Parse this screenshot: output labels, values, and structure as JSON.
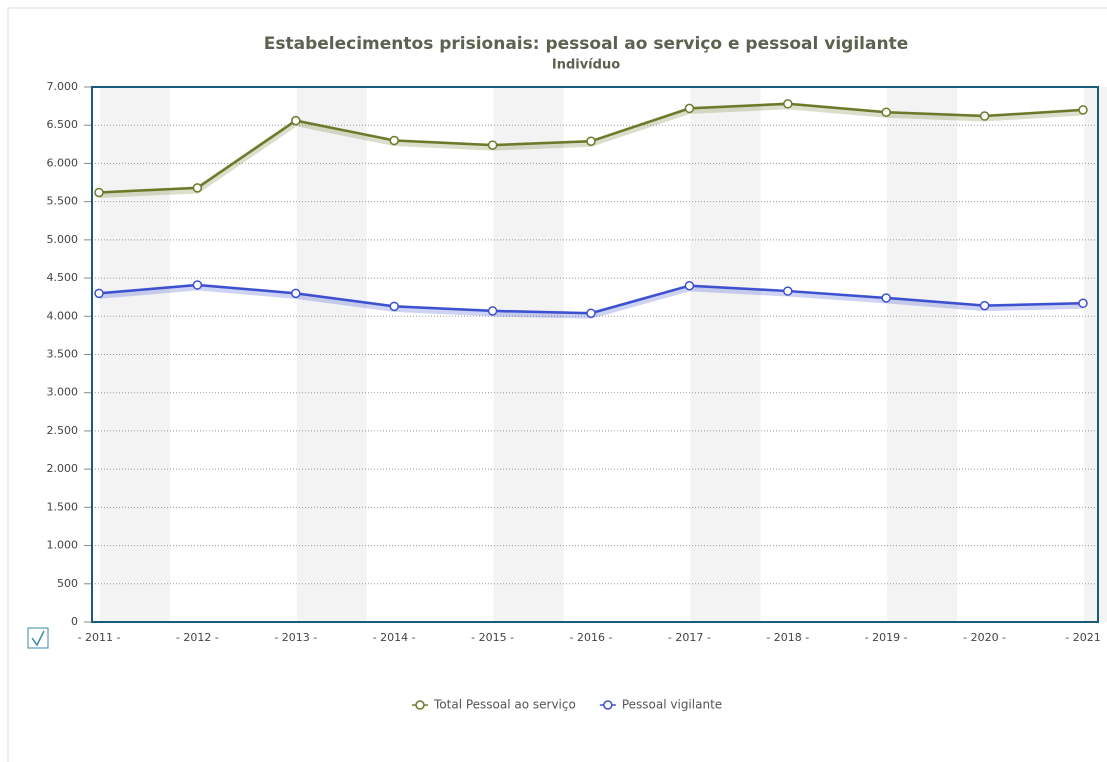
{
  "chart_data": {
    "type": "line",
    "title": "Estabelecimentos prisionais: pessoal ao serviço e pessoal vigilante",
    "subtitle": "Indivíduo",
    "categories": [
      "- 2011 -",
      "- 2012 -",
      "- 2013 -",
      "- 2014 -",
      "- 2015 -",
      "- 2016 -",
      "- 2017 -",
      "- 2018 -",
      "- 2019 -",
      "- 2020 -",
      "- 2021"
    ],
    "series": [
      {
        "name": "Total Pessoal ao serviço",
        "color": "#6b7a2a",
        "values": [
          5620,
          5680,
          6560,
          6300,
          6240,
          6290,
          6720,
          6780,
          6670,
          6620,
          6700
        ]
      },
      {
        "name": "Pessoal vigilante",
        "color": "#3d50d0",
        "values": [
          4300,
          4410,
          4300,
          4130,
          4070,
          4040,
          4400,
          4330,
          4240,
          4140,
          4170
        ]
      }
    ],
    "ylim": [
      0,
      7000
    ],
    "yticks": [
      0,
      500,
      {
        "value": 1000,
        "label": "1.000"
      },
      {
        "value": 1500,
        "label": "1.500"
      },
      {
        "value": 2000,
        "label": "2.000"
      },
      {
        "value": 2500,
        "label": "2.500"
      },
      {
        "value": 3000,
        "label": "3.000"
      },
      {
        "value": 3500,
        "label": "3.500"
      },
      {
        "value": 4000,
        "label": "4.000"
      },
      {
        "value": 4500,
        "label": "4.500"
      },
      {
        "value": 5000,
        "label": "5.000"
      },
      {
        "value": 5500,
        "label": "5.500"
      },
      {
        "value": 6000,
        "label": "6.000"
      },
      {
        "value": 6500,
        "label": "6.500"
      },
      {
        "value": 7000,
        "label": "7.000"
      }
    ],
    "grid": true
  }
}
